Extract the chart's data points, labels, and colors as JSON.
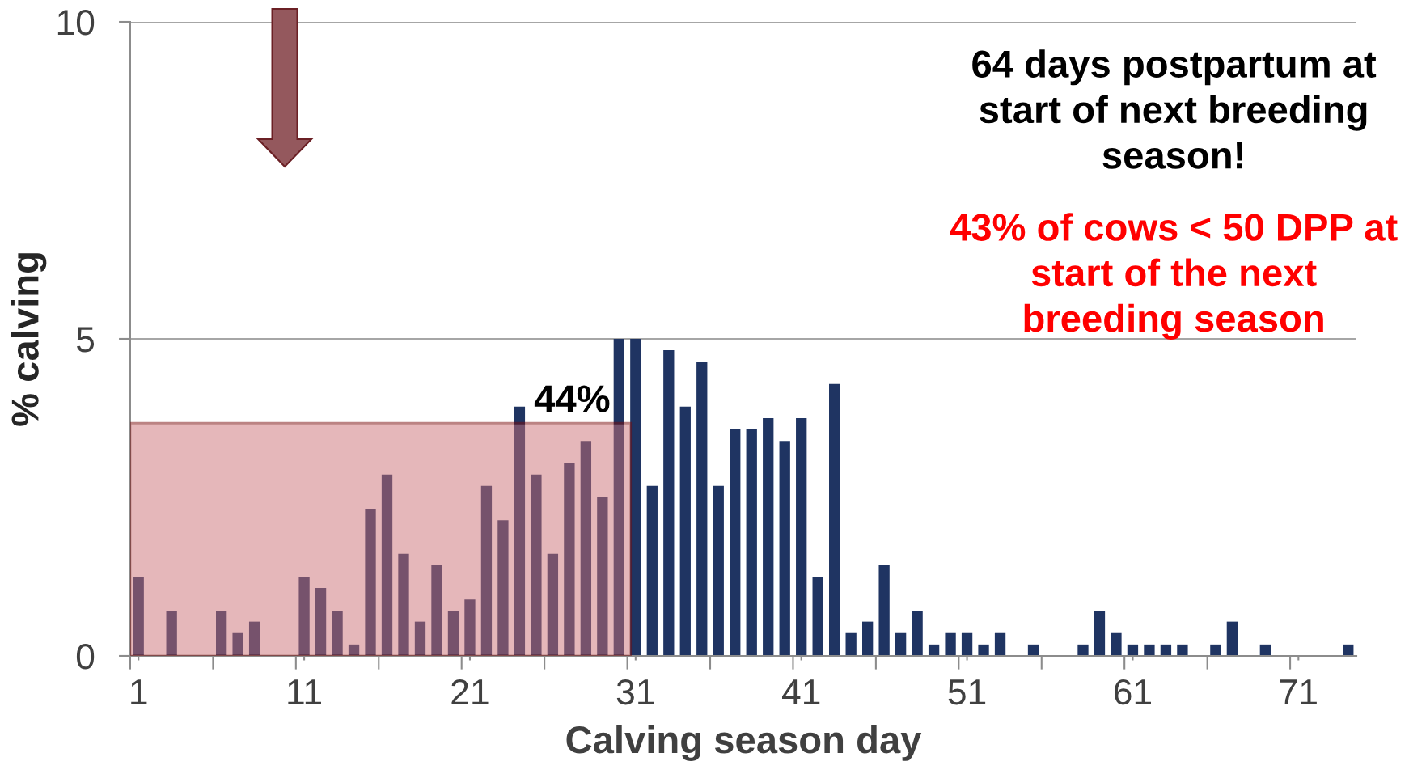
{
  "chart_data": {
    "type": "bar",
    "xlabel": "Calving season day",
    "ylabel": "% calving",
    "x": [
      1,
      2,
      3,
      4,
      5,
      6,
      7,
      8,
      9,
      10,
      11,
      12,
      13,
      14,
      15,
      16,
      17,
      18,
      19,
      20,
      21,
      22,
      23,
      24,
      25,
      26,
      27,
      28,
      29,
      30,
      31,
      32,
      33,
      34,
      35,
      36,
      37,
      38,
      39,
      40,
      41,
      42,
      43,
      44,
      45,
      46,
      47,
      48,
      49,
      50,
      51,
      52,
      53,
      54,
      55,
      56,
      57,
      58,
      59,
      60,
      61,
      62,
      63,
      64,
      65,
      66,
      67,
      68,
      69,
      70,
      71,
      72,
      73,
      74
    ],
    "values": [
      1.25,
      0,
      0.71,
      0,
      0,
      0.71,
      0.36,
      0.54,
      0,
      0,
      1.25,
      1.07,
      0.71,
      0.18,
      2.32,
      2.86,
      1.61,
      0.54,
      1.43,
      0.71,
      0.89,
      2.68,
      2.14,
      3.93,
      2.86,
      1.61,
      3.04,
      3.39,
      2.5,
      5.0,
      5.0,
      2.68,
      4.82,
      3.93,
      4.64,
      2.68,
      3.57,
      3.57,
      3.75,
      3.39,
      3.75,
      1.25,
      4.29,
      0.36,
      0.54,
      1.43,
      0.36,
      0.71,
      0.18,
      0.36,
      0.36,
      0.18,
      0.36,
      0,
      0.18,
      0,
      0,
      0.18,
      0.71,
      0.36,
      0.18,
      0.18,
      0.18,
      0.18,
      0,
      0.18,
      0.54,
      0,
      0.18,
      0,
      0,
      0,
      0,
      0.18
    ],
    "color": "#1f3462",
    "xlim": [
      0.5,
      74.5
    ],
    "xticks": [
      1,
      11,
      21,
      31,
      41,
      51,
      61,
      71
    ],
    "ylim": [
      0,
      10
    ],
    "yticks": [
      0,
      5,
      10
    ],
    "grid": "y",
    "bands": [
      {
        "axis": "x",
        "from": 0.5,
        "to": 30.7,
        "label": "44%",
        "color": "#cd7177"
      }
    ],
    "annotations": [
      "64 days postpartum at\nstart of next breeding\nseason!",
      "43% of cows < 50 DPP at\nstart of the next\nbreeding season"
    ]
  }
}
